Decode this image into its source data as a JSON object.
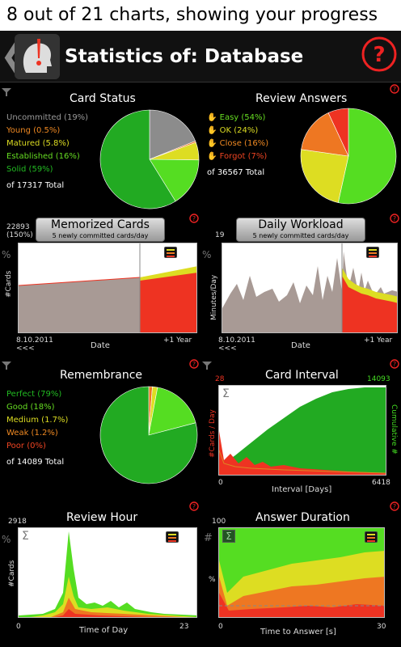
{
  "caption": "8 out of 21 charts, showing your progress",
  "header": {
    "title": "Statistics of: Database"
  },
  "colors": {
    "green": "#22aa22",
    "lime": "#55dd22",
    "yellow": "#dddd22",
    "orange": "#ee7722",
    "red": "#ee3322",
    "gray": "#8c8c8c",
    "pinkgray": "#a89a95"
  },
  "card_status": {
    "title": "Card Status",
    "legend": [
      {
        "label": "Uncommitted (19%)",
        "value": 19,
        "color": "#8c8c8c"
      },
      {
        "label": "Young (0.5%)",
        "value": 0.5,
        "color": "#ee7722"
      },
      {
        "label": "Matured (5.8%)",
        "value": 5.8,
        "color": "#dddd22"
      },
      {
        "label": "Established (16%)",
        "value": 16,
        "color": "#55dd22"
      },
      {
        "label": "Solid (59%)",
        "value": 59,
        "color": "#22aa22"
      }
    ],
    "total": "of 17317 Total"
  },
  "review_answers": {
    "title": "Review Answers",
    "legend": [
      {
        "label": "Easy (54%)",
        "value": 54,
        "color": "#55dd22"
      },
      {
        "label": "OK (24%)",
        "value": 24,
        "color": "#dddd22"
      },
      {
        "label": "Close (16%)",
        "value": 16,
        "color": "#ee7722"
      },
      {
        "label": "Forgot (7%)",
        "value": 7,
        "color": "#ee3322"
      }
    ],
    "total": "of 36567 Total"
  },
  "memorized": {
    "title": "Memorized Cards",
    "subtitle": "5 newly committed cards/day",
    "ymax": "22893",
    "ypct": "(150%)",
    "ylabel": "#Cards",
    "xlabel": "Date",
    "xstart": "8.10.2011",
    "xend": "+1 Year",
    "nav": "<<<"
  },
  "workload": {
    "title": "Daily Workload",
    "subtitle": "5 newly committed cards/day",
    "ymax": "19",
    "ylabel": "Minutes/Day",
    "xlabel": "Date",
    "xstart": "8.10.2011",
    "xend": "+1 Year",
    "nav": "<<<"
  },
  "remembrance": {
    "title": "Remembrance",
    "legend": [
      {
        "label": "Perfect (79%)",
        "value": 79,
        "color": "#22aa22"
      },
      {
        "label": "Good (18%)",
        "value": 18,
        "color": "#55dd22"
      },
      {
        "label": "Medium (1.7%)",
        "value": 1.7,
        "color": "#dddd22"
      },
      {
        "label": "Weak (1.2%)",
        "value": 1.2,
        "color": "#ee7722"
      },
      {
        "label": "Poor (0%)",
        "value": 0,
        "color": "#ee3322"
      }
    ],
    "total": "of 14089 Total"
  },
  "interval": {
    "title": "Card Interval",
    "yleft_max": "28",
    "yright_max": "14093",
    "yleft_label": "#Cards / Day",
    "yright_label": "Cumulative #",
    "xlabel": "Interval [Days]",
    "xstart": "0",
    "xend": "6418"
  },
  "review_hour": {
    "title": "Review Hour",
    "ymax": "2918",
    "ylabel": "#Cards",
    "xlabel": "Time of Day",
    "xstart": "0",
    "xend": "23"
  },
  "answer_duration": {
    "title": "Answer Duration",
    "ymax": "100",
    "ylabel": "%",
    "xlabel": "Time to Answer [s]",
    "xstart": "0",
    "xend": "30"
  },
  "icons": {
    "percent": "%",
    "sum": "Σ",
    "hash": "#",
    "back": "❮"
  }
}
